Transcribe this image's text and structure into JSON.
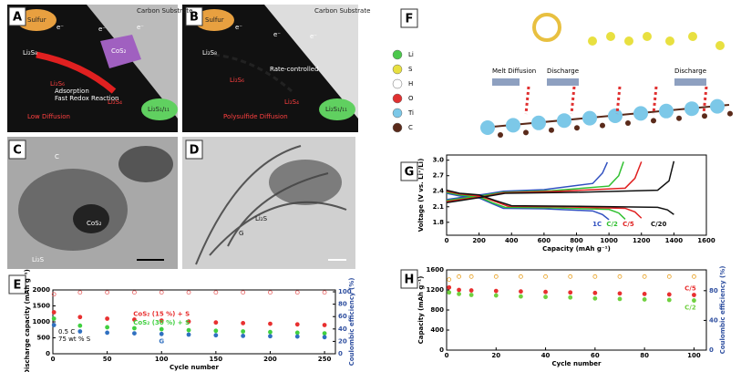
{
  "panel_labels": [
    "A",
    "B",
    "C",
    "D",
    "E",
    "F",
    "G",
    "H"
  ],
  "diagram_a": {
    "top": "Carbon Substrate",
    "sulfur": "Sulfur",
    "electrons": [
      "e⁻",
      "e⁻",
      "e⁻"
    ],
    "catalyst": "CoS₂",
    "species": [
      "Li₂S₈",
      "Li₂S₆",
      "Li₂S₄",
      "Li₂S₁/₁₁"
    ],
    "notes": [
      "Adsorption",
      "Fast Redox Reaction",
      "Low Diffusion"
    ]
  },
  "diagram_b": {
    "top": "Carbon Substrate",
    "sulfur": "Sulfur",
    "electrons": [
      "e⁻",
      "e⁻",
      "e⁻"
    ],
    "species": [
      "Li₂S₈",
      "Li₂S₆",
      "Li₂S₄",
      "Li₂S₁/₁₁"
    ],
    "notes": [
      "Rate-controlled",
      "Polysulfide Diffusion"
    ]
  },
  "micrograph_c": {
    "labels": [
      "C",
      "CoS₂",
      "Li₂S"
    ]
  },
  "micrograph_d": {
    "labels": [
      "Li₂S",
      "G"
    ]
  },
  "diagram_f": {
    "legend": [
      "Li",
      "S",
      "H",
      "O",
      "Ti",
      "C"
    ],
    "colors": [
      "#4cc84c",
      "#e8e040",
      "#ffffff",
      "#e03030",
      "#7cc8e8",
      "#5a2a1a"
    ],
    "steps": [
      "Melt Diffusion",
      "Discharge",
      "Discharge"
    ]
  },
  "chart_data": [
    {
      "type": "scatter",
      "xlabel": "Cycle number",
      "ylabel": "Discharge capacity (mAh g⁻¹)",
      "y2label": "Coulombic efficiency (%)",
      "annotations": [
        "0.5 C",
        "75 wt % S"
      ],
      "x": [
        1,
        25,
        50,
        75,
        100,
        125,
        150,
        175,
        200,
        225,
        250
      ],
      "xlim": [
        0,
        260
      ],
      "xticks": [
        0,
        50,
        100,
        150,
        200,
        250
      ],
      "ylim": [
        0,
        2000
      ],
      "yticks": [
        0,
        500,
        1000,
        1500,
        2000
      ],
      "y2lim": [
        0,
        103
      ],
      "y2ticks": [
        0,
        20,
        40,
        60,
        80,
        100
      ],
      "series": [
        {
          "name": "CoS₂ (15 %) + S",
          "color": "#e83030",
          "values": [
            1300,
            1150,
            1100,
            1070,
            1040,
            1010,
            980,
            960,
            940,
            920,
            900
          ]
        },
        {
          "name": "CoS₂ (30 %) + S",
          "color": "#40d040",
          "values": [
            1100,
            880,
            830,
            800,
            770,
            740,
            720,
            700,
            680,
            660,
            640
          ]
        },
        {
          "name": "G",
          "color": "#3070c0",
          "values": [
            900,
            700,
            660,
            640,
            620,
            600,
            580,
            560,
            550,
            540,
            520
          ]
        },
        {
          "color": "#e86060",
          "axis": "y2",
          "values": [
            96,
            99,
            99,
            99,
            99,
            99,
            99,
            99,
            99,
            99,
            99
          ]
        }
      ]
    },
    {
      "type": "line",
      "xlabel": "Capacity (mAh g⁻¹)",
      "ylabel": "Voltage (V vs. Li⁺/Li)",
      "xlim": [
        0,
        1600
      ],
      "xticks": [
        0,
        200,
        400,
        600,
        800,
        1000,
        1200,
        1400,
        1600
      ],
      "ylim": [
        1.55,
        3.1
      ],
      "yticks": [
        1.8,
        2.1,
        2.4,
        2.7,
        {
          "value": 3,
          "label": "3.0"
        }
      ],
      "series": [
        {
          "name": "1C",
          "color": "#3050c0",
          "x": [
            0,
            80,
            200,
            280,
            350,
            600,
            900,
            960,
            1000,
            null,
            0,
            250,
            350,
            600,
            900,
            960,
            990
          ],
          "values": [
            2.36,
            2.31,
            2.27,
            2.16,
            2.07,
            2.06,
            2.02,
            1.95,
            1.85,
            null,
            2.24,
            2.35,
            2.4,
            2.43,
            2.55,
            2.75,
            2.96
          ]
        },
        {
          "name": "C/2",
          "color": "#30c030",
          "x": [
            0,
            80,
            200,
            280,
            360,
            650,
            1000,
            1060,
            1100,
            null,
            0,
            250,
            350,
            650,
            1000,
            1060,
            1090
          ],
          "values": [
            2.38,
            2.33,
            2.29,
            2.18,
            2.09,
            2.08,
            2.05,
            1.98,
            1.86,
            null,
            2.22,
            2.33,
            2.38,
            2.41,
            2.5,
            2.7,
            2.97
          ]
        },
        {
          "name": "C/5",
          "color": "#e02020",
          "x": [
            0,
            80,
            200,
            300,
            380,
            700,
            1100,
            1160,
            1200,
            null,
            0,
            250,
            350,
            700,
            1100,
            1160,
            1200
          ],
          "values": [
            2.4,
            2.35,
            2.31,
            2.2,
            2.11,
            2.1,
            2.07,
            2.0,
            1.88,
            null,
            2.2,
            2.31,
            2.37,
            2.4,
            2.46,
            2.65,
            2.97
          ]
        },
        {
          "name": "C/20",
          "color": "#111111",
          "x": [
            0,
            80,
            200,
            300,
            400,
            800,
            1300,
            1360,
            1400,
            null,
            0,
            250,
            360,
            800,
            1300,
            1370,
            1400
          ],
          "values": [
            2.42,
            2.36,
            2.33,
            2.22,
            2.12,
            2.11,
            2.09,
            2.04,
            1.95,
            null,
            2.18,
            2.3,
            2.36,
            2.38,
            2.42,
            2.6,
            2.98
          ]
        }
      ]
    },
    {
      "type": "scatter",
      "xlabel": "Cycle number",
      "ylabel": "Capacity (mAh g⁻¹)",
      "y2label": "Coulombic efficiency (%)",
      "x": [
        1,
        5,
        10,
        20,
        30,
        40,
        50,
        60,
        70,
        80,
        90,
        100
      ],
      "xlim": [
        0,
        105
      ],
      "xticks": [
        0,
        20,
        40,
        60,
        80,
        100
      ],
      "ylim": [
        0,
        1600
      ],
      "yticks": [
        0,
        400,
        800,
        1200,
        1600
      ],
      "y2lim": [
        0,
        108
      ],
      "y2ticks": [
        0,
        40,
        80
      ],
      "series": [
        {
          "name": "C/5",
          "color": "#e83030",
          "values": [
            1250,
            1200,
            1190,
            1180,
            1170,
            1160,
            1150,
            1140,
            1130,
            1120,
            1110,
            1100
          ]
        },
        {
          "name": "C/2",
          "color": "#70d040",
          "values": [
            1150,
            1120,
            1100,
            1090,
            1070,
            1060,
            1050,
            1030,
            1020,
            1010,
            1000,
            990
          ]
        },
        {
          "color": "#e8a020",
          "axis": "y2",
          "values": [
            95,
            99,
            99,
            99,
            99,
            99,
            99,
            99,
            99,
            99,
            99,
            99
          ]
        }
      ]
    }
  ]
}
